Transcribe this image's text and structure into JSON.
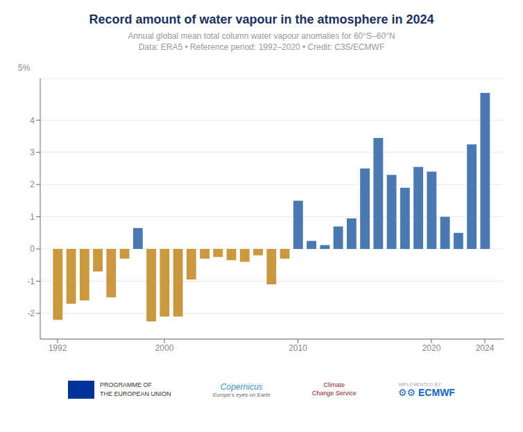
{
  "chart_data": {
    "type": "bar",
    "title": "Record amount of water vapour in the atmosphere in 2024",
    "subtitle": [
      "Annual global mean total column water vapour anomalies for 60°S–60°N",
      "Data: ERA5 • Reference period: 1992–2020 • Credit: C3S/ECMWF"
    ],
    "x": [
      1992,
      1993,
      1994,
      1995,
      1996,
      1997,
      1998,
      1999,
      2000,
      2001,
      2002,
      2003,
      2004,
      2005,
      2006,
      2007,
      2008,
      2009,
      2010,
      2011,
      2012,
      2013,
      2014,
      2015,
      2016,
      2017,
      2018,
      2019,
      2020,
      2021,
      2022,
      2023,
      2024
    ],
    "values": [
      -2.2,
      -1.7,
      -1.6,
      -0.7,
      -1.5,
      -0.3,
      0.65,
      -2.25,
      -2.1,
      -2.1,
      -0.95,
      -0.3,
      -0.25,
      -0.35,
      -0.4,
      -0.2,
      -1.1,
      -0.3,
      1.5,
      0.25,
      0.12,
      0.7,
      0.95,
      2.5,
      3.45,
      2.3,
      1.9,
      2.55,
      2.4,
      1.0,
      0.5,
      3.25,
      4.85
    ],
    "colors": [
      "#c9983f",
      "#c9983f",
      "#c9983f",
      "#c9983f",
      "#c9983f",
      "#c9983f",
      "#4a78b0",
      "#c9983f",
      "#c9983f",
      "#c9983f",
      "#c9983f",
      "#c9983f",
      "#c9983f",
      "#c9983f",
      "#c9983f",
      "#c9983f",
      "#c9983f",
      "#c9983f",
      "#4a78b0",
      "#4a78b0",
      "#4a78b0",
      "#4a78b0",
      "#4a78b0",
      "#4a78b0",
      "#4a78b0",
      "#4a78b0",
      "#4a78b0",
      "#4a78b0",
      "#4a78b0",
      "#4a78b0",
      "#4a78b0",
      "#4a78b0",
      "#4a78b0"
    ],
    "xlim": [
      1990.7,
      2025.4
    ],
    "xticks": [
      1992,
      2000,
      2010,
      2020,
      2024
    ],
    "ylim": [
      -2.8,
      5.3
    ],
    "yticks": [
      -2,
      -1,
      0,
      1,
      2,
      3,
      4
    ],
    "grid": true,
    "annotations": [
      "5%",
      "PROGRAMME OF\nTHE EUROPEAN UNION",
      "Copernicus",
      "Europe's eyes on Earth",
      "Climate\nChange Service",
      "IMPLEMENTED BY",
      "⚙⚙ ECMWF"
    ]
  }
}
